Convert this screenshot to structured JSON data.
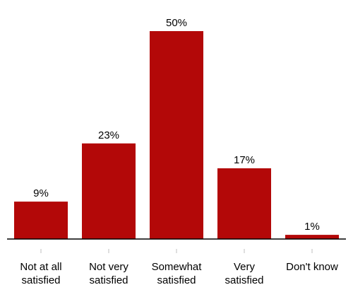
{
  "chart_data": {
    "type": "bar",
    "categories": [
      [
        "Not at all",
        "satisfied"
      ],
      [
        "Not very",
        "satisfied"
      ],
      [
        "Somewhat",
        "satisfied"
      ],
      [
        "Very",
        "satisfied"
      ],
      [
        "Don't know"
      ]
    ],
    "values": [
      9,
      23,
      50,
      17,
      1
    ],
    "value_labels": [
      "9%",
      "23%",
      "50%",
      "17%",
      "1%"
    ],
    "title": "",
    "xlabel": "",
    "ylabel": "",
    "ylim": [
      0,
      50
    ],
    "grid": false,
    "legend": "none",
    "bar_color": "#b30808",
    "axis_color": "#000000",
    "tick_color": "#bfbfbf"
  }
}
